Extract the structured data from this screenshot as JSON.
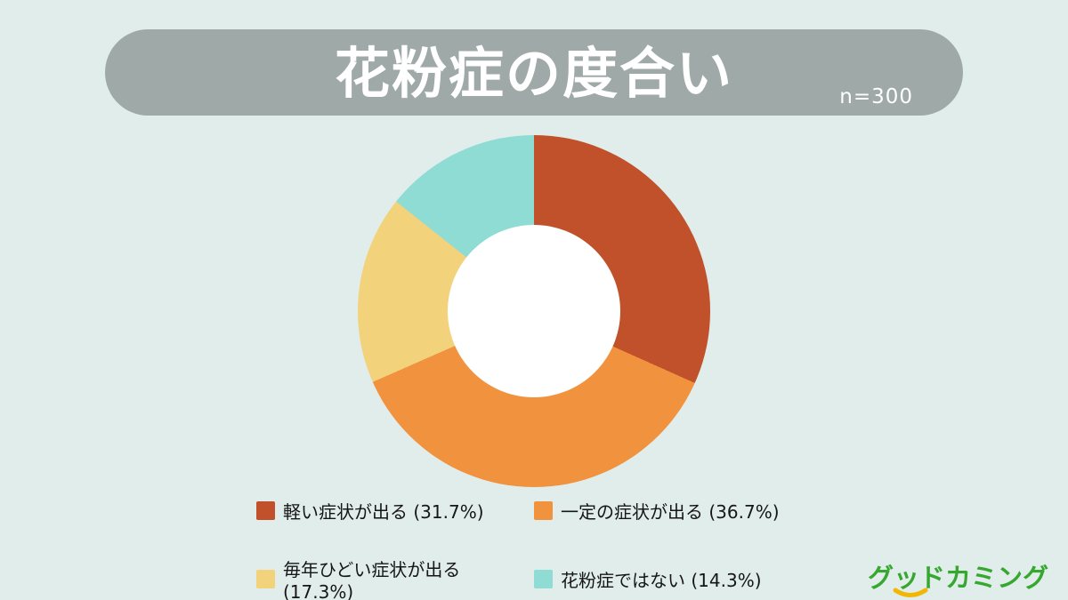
{
  "page": {
    "background_color": "#e0edeb"
  },
  "header": {
    "title": "花粉症の度合い",
    "sample_size": "n=300",
    "banner_color": "#9fa9a7",
    "title_color": "#ffffff"
  },
  "chart_data": {
    "type": "pie",
    "donut": true,
    "title": "花粉症の度合い",
    "sample_size": 300,
    "start_angle_deg": 0,
    "direction": "clockwise",
    "inner_radius_ratio": 0.49,
    "hole_color": "#ffffff",
    "legend_position": "bottom",
    "series": [
      {
        "label": "軽い症状が出る",
        "value": 31.7,
        "color": "#c0512b"
      },
      {
        "label": "一定の症状が出る",
        "value": 36.7,
        "color": "#f0923e"
      },
      {
        "label": "毎年ひどい症状が出る",
        "value": 17.3,
        "color": "#f3d27c"
      },
      {
        "label": "花粉症ではない",
        "value": 14.3,
        "color": "#8edcd3"
      }
    ]
  },
  "legend": {
    "items": [
      {
        "text": "軽い症状が出る (31.7%)"
      },
      {
        "text": "一定の症状が出る (36.7%)"
      },
      {
        "text": "毎年ひどい症状が出る (17.3%)"
      },
      {
        "text": "花粉症ではない (14.3%)"
      }
    ]
  },
  "footer": {
    "logo_text": "グッドカミング",
    "logo_color": "#36a72f",
    "logo_accent_color": "#f2b705"
  }
}
